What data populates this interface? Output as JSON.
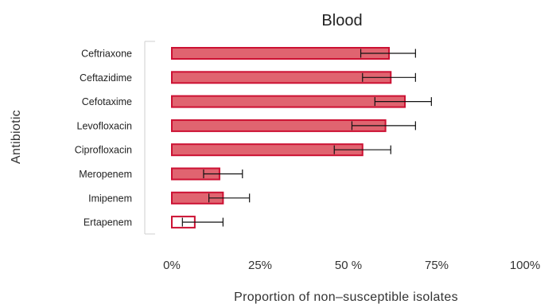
{
  "chart_data": {
    "type": "bar",
    "orientation": "horizontal",
    "title": "Blood",
    "xlabel": "Proportion of non–susceptible isolates",
    "ylabel": "Antibiotic",
    "categories": [
      "Ceftriaxone",
      "Ceftazidime",
      "Cefotaxime",
      "Levofloxacin",
      "Ciprofloxacin",
      "Meropenem",
      "Imipenem",
      "Ertapenem"
    ],
    "values": [
      61.5,
      62,
      66,
      60.5,
      54,
      13.5,
      14.5,
      6.5
    ],
    "error_low": [
      53.5,
      54,
      57.5,
      51,
      46,
      9,
      10.5,
      3
    ],
    "error_high": [
      69,
      69,
      73.5,
      69,
      62,
      20,
      22,
      14.5
    ],
    "xlim": [
      -5,
      100
    ],
    "xticks": [
      0,
      25,
      50,
      75,
      100
    ],
    "xtick_labels": [
      "0%",
      "25%",
      "50 %",
      "75%",
      "100%"
    ],
    "bar_fill": "#e06470",
    "bar_stroke": "#cc1133",
    "last_bar_fill": "#ffffff",
    "grid": false
  }
}
